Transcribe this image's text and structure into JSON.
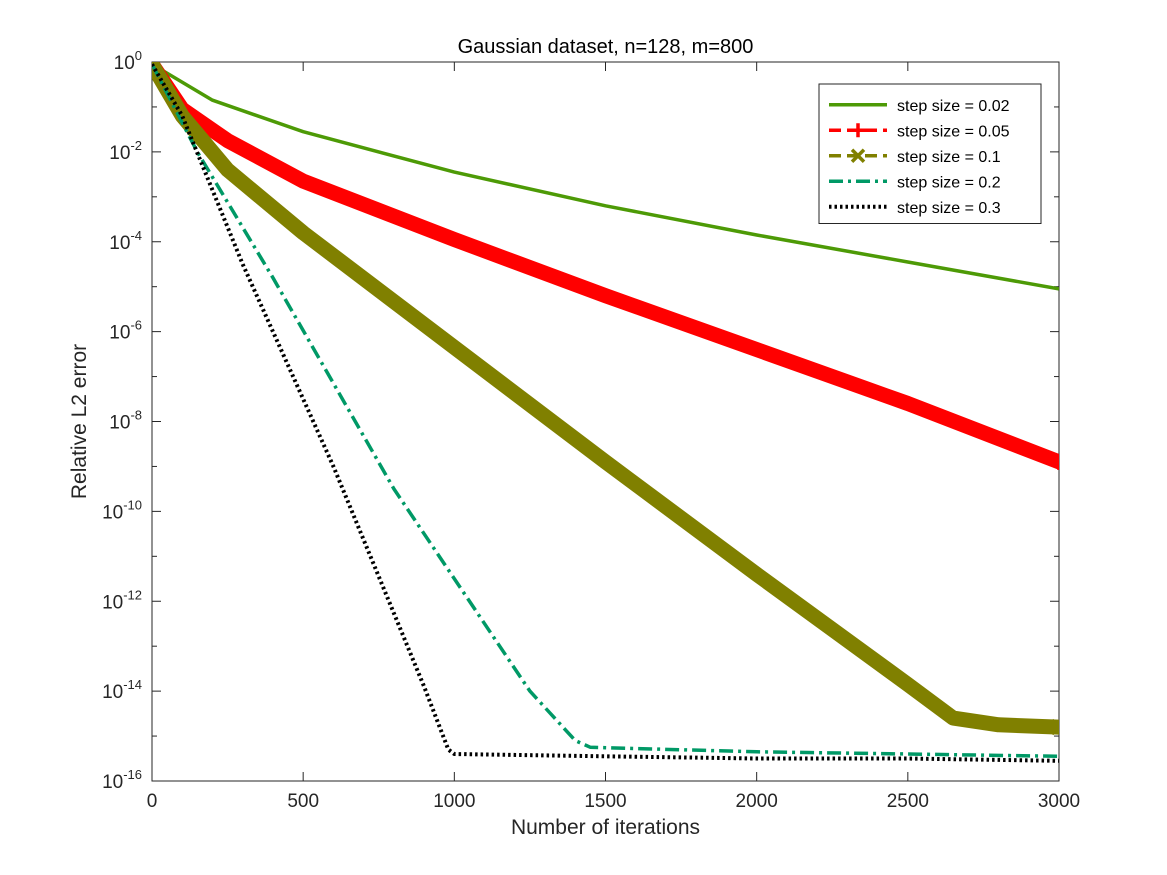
{
  "chart_data": {
    "type": "line",
    "title": "Gaussian dataset, n=128, m=800",
    "xlabel": "Number of iterations",
    "ylabel": "Relative L2 error",
    "xlim": [
      0,
      3000
    ],
    "ylim_log10": [
      -16,
      0
    ],
    "yscale": "log",
    "grid": false,
    "legend_position": "top-right",
    "x_ticks": [
      "0",
      "500",
      "1000",
      "1500",
      "2000",
      "2500",
      "3000"
    ],
    "x_tick_values": [
      0,
      500,
      1000,
      1500,
      2000,
      2500,
      3000
    ],
    "y_ticks": [
      {
        "base": "10",
        "exp": "0",
        "log10": 0
      },
      {
        "base": "10",
        "exp": "-2",
        "log10": -2
      },
      {
        "base": "10",
        "exp": "-4",
        "log10": -4
      },
      {
        "base": "10",
        "exp": "-6",
        "log10": -6
      },
      {
        "base": "10",
        "exp": "-8",
        "log10": -8
      },
      {
        "base": "10",
        "exp": "-10",
        "log10": -10
      },
      {
        "base": "10",
        "exp": "-12",
        "log10": -12
      },
      {
        "base": "10",
        "exp": "-14",
        "log10": -14
      },
      {
        "base": "10",
        "exp": "-16",
        "log10": -16
      }
    ],
    "series": [
      {
        "name": "step size = 0.02",
        "color": "#4d9a06",
        "style": "solid",
        "marker": "none",
        "points_log10": [
          [
            0,
            -0.05
          ],
          [
            200,
            -0.85
          ],
          [
            500,
            -1.55
          ],
          [
            1000,
            -2.45
          ],
          [
            1500,
            -3.2
          ],
          [
            2000,
            -3.85
          ],
          [
            2500,
            -4.45
          ],
          [
            3000,
            -5.05
          ]
        ]
      },
      {
        "name": "step size = 0.05",
        "color": "#ff0000",
        "style": "dashed",
        "marker": "plus",
        "points_log10": [
          [
            0,
            -0.05
          ],
          [
            100,
            -1.05
          ],
          [
            250,
            -1.75
          ],
          [
            500,
            -2.65
          ],
          [
            1000,
            -3.95
          ],
          [
            1500,
            -5.2
          ],
          [
            2000,
            -6.4
          ],
          [
            2500,
            -7.6
          ],
          [
            3000,
            -8.9
          ]
        ]
      },
      {
        "name": "step size = 0.1",
        "color": "#808000",
        "style": "dashed",
        "marker": "x",
        "points_log10": [
          [
            0,
            -0.05
          ],
          [
            100,
            -1.2
          ],
          [
            250,
            -2.4
          ],
          [
            500,
            -3.8
          ],
          [
            1000,
            -6.35
          ],
          [
            1500,
            -8.9
          ],
          [
            2000,
            -11.4
          ],
          [
            2500,
            -13.85
          ],
          [
            2650,
            -14.6
          ],
          [
            2800,
            -14.75
          ],
          [
            3000,
            -14.8
          ]
        ]
      },
      {
        "name": "step size = 0.2",
        "color": "#009966",
        "style": "dashdot",
        "marker": "none",
        "points_log10": [
          [
            0,
            -0.05
          ],
          [
            150,
            -2.0
          ],
          [
            400,
            -4.8
          ],
          [
            800,
            -9.5
          ],
          [
            1250,
            -14.0
          ],
          [
            1400,
            -15.1
          ],
          [
            1450,
            -15.25
          ],
          [
            2000,
            -15.35
          ],
          [
            2500,
            -15.4
          ],
          [
            3000,
            -15.45
          ]
        ]
      },
      {
        "name": "step size = 0.3",
        "color": "#000000",
        "style": "dotted",
        "marker": "none",
        "points_log10": [
          [
            0,
            -0.05
          ],
          [
            100,
            -1.2
          ],
          [
            300,
            -4.5
          ],
          [
            600,
            -9.0
          ],
          [
            900,
            -13.9
          ],
          [
            980,
            -15.3
          ],
          [
            1000,
            -15.4
          ],
          [
            1500,
            -15.45
          ],
          [
            2000,
            -15.5
          ],
          [
            2500,
            -15.5
          ],
          [
            3000,
            -15.55
          ]
        ]
      }
    ]
  }
}
